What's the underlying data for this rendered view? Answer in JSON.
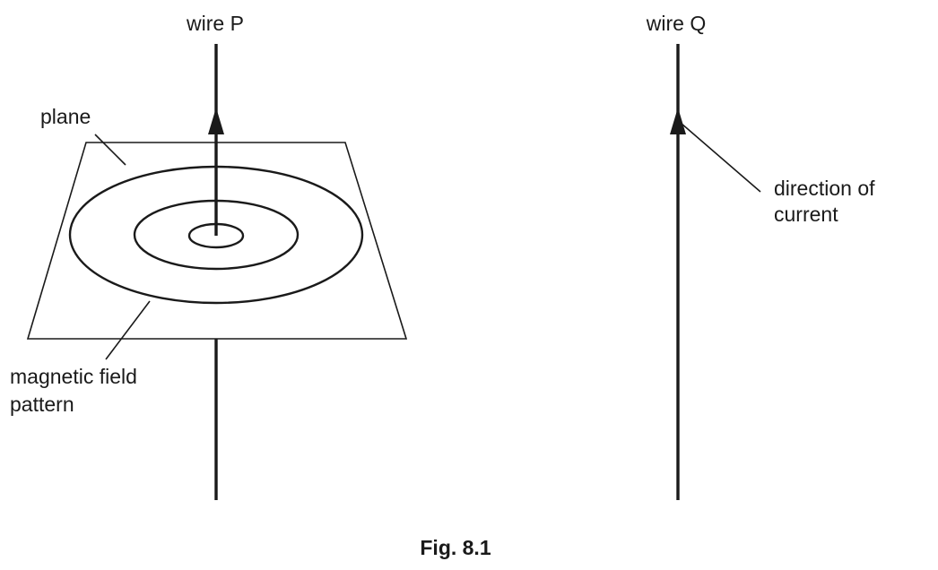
{
  "labels": {
    "wire_p": "wire P",
    "wire_q": "wire Q",
    "plane": "plane",
    "magnetic_field_line1": "magnetic field",
    "magnetic_field_line2": "pattern",
    "direction_line1": "direction of",
    "direction_line2": "current"
  },
  "caption": "Fig. 8.1",
  "colors": {
    "ink": "#1a1a1a",
    "background": "#ffffff"
  }
}
